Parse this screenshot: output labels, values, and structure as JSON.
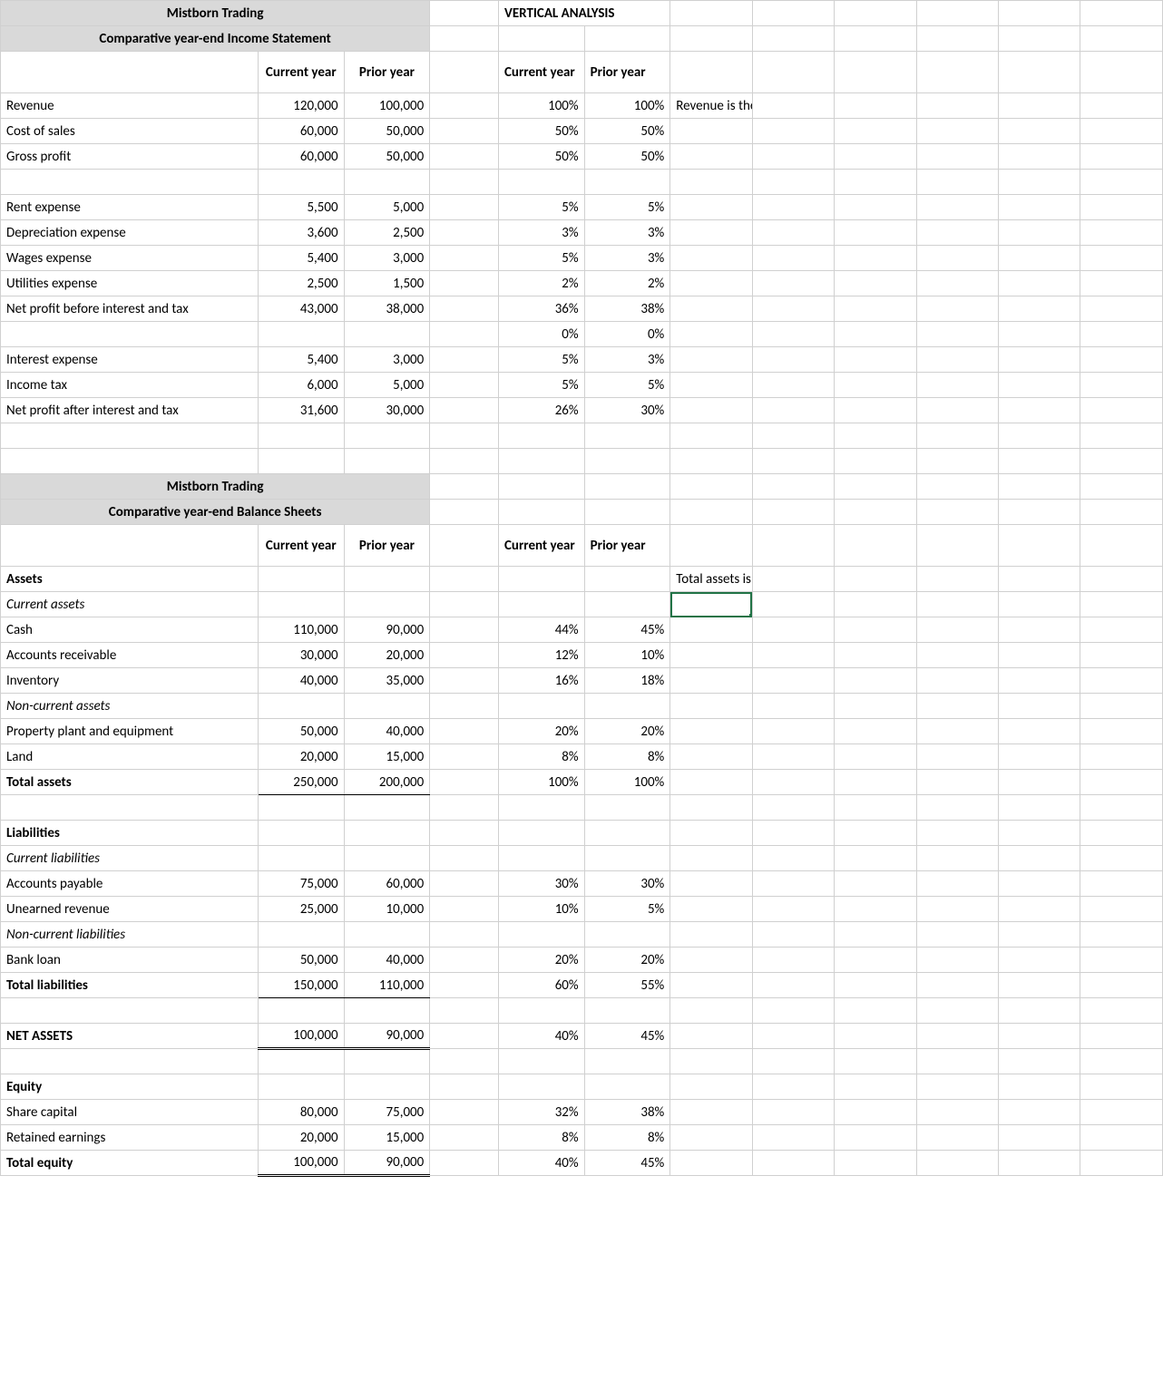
{
  "colors": {
    "header_bg": "#d9d9d9",
    "grid": "#d0d0d0",
    "selection": "#217346",
    "text": "#000000",
    "background": "#ffffff"
  },
  "vertical_analysis_label": "VERTICAL ANALYSIS",
  "col_headers": {
    "current_year": "Current year",
    "prior_year": "Prior year"
  },
  "income": {
    "title1": "Mistborn Trading",
    "title2": "Comparative year-end Income Statement",
    "note": "Revenue is the base for the P&L",
    "rows": [
      {
        "label": "Revenue",
        "cy": "120,000",
        "py": "100,000",
        "cyp": "100%",
        "pyp": "100%",
        "note": true
      },
      {
        "label": "Cost of sales",
        "cy": "60,000",
        "py": "50,000",
        "cyp": "50%",
        "pyp": "50%"
      },
      {
        "label": "Gross profit",
        "cy": "60,000",
        "py": "50,000",
        "cyp": "50%",
        "pyp": "50%"
      },
      {
        "blank": true
      },
      {
        "label": "Rent expense",
        "cy": "5,500",
        "py": "5,000",
        "cyp": "5%",
        "pyp": "5%"
      },
      {
        "label": "Depreciation expense",
        "cy": "3,600",
        "py": "2,500",
        "cyp": "3%",
        "pyp": "3%"
      },
      {
        "label": "Wages expense",
        "cy": "5,400",
        "py": "3,000",
        "cyp": "5%",
        "pyp": "3%"
      },
      {
        "label": "Utilities expense",
        "cy": "2,500",
        "py": "1,500",
        "cyp": "2%",
        "pyp": "2%"
      },
      {
        "label": "Net profit before interest and tax",
        "cy": "43,000",
        "py": "38,000",
        "cyp": "36%",
        "pyp": "38%"
      },
      {
        "label": "",
        "cy": "",
        "py": "",
        "cyp": "0%",
        "pyp": "0%"
      },
      {
        "label": "Interest expense",
        "cy": "5,400",
        "py": "3,000",
        "cyp": "5%",
        "pyp": "3%"
      },
      {
        "label": "Income tax",
        "cy": "6,000",
        "py": "5,000",
        "cyp": "5%",
        "pyp": "5%"
      },
      {
        "label": "Net profit after interest and tax",
        "cy": "31,600",
        "py": "30,000",
        "cyp": "26%",
        "pyp": "30%"
      }
    ]
  },
  "balance": {
    "title1": "Mistborn Trading",
    "title2": "Comparative year-end Balance Sheets",
    "note": "Total assets is the base for the Balance Sheet",
    "rows": [
      {
        "label": "Assets",
        "bold": true,
        "note": true
      },
      {
        "label": "Current assets",
        "italic": true,
        "selected_after": true
      },
      {
        "label": "Cash",
        "cy": "110,000",
        "py": "90,000",
        "cyp": "44%",
        "pyp": "45%"
      },
      {
        "label": "Accounts receivable",
        "cy": "30,000",
        "py": "20,000",
        "cyp": "12%",
        "pyp": "10%"
      },
      {
        "label": "Inventory",
        "cy": "40,000",
        "py": "35,000",
        "cyp": "16%",
        "pyp": "18%"
      },
      {
        "label": "Non-current assets",
        "italic": true
      },
      {
        "label": "Property plant and equipment",
        "cy": "50,000",
        "py": "40,000",
        "cyp": "20%",
        "pyp": "20%"
      },
      {
        "label": "Land",
        "cy": "20,000",
        "py": "15,000",
        "cyp": "8%",
        "pyp": "8%"
      },
      {
        "label": "Total assets",
        "bold": true,
        "cy": "250,000",
        "py": "200,000",
        "cyp": "100%",
        "pyp": "100%",
        "rule": "single"
      },
      {
        "blank": true
      },
      {
        "label": "Liabilities",
        "bold": true
      },
      {
        "label": "Current liabilities",
        "italic": true
      },
      {
        "label": "Accounts payable",
        "cy": "75,000",
        "py": "60,000",
        "cyp": "30%",
        "pyp": "30%"
      },
      {
        "label": "Unearned revenue",
        "cy": "25,000",
        "py": "10,000",
        "cyp": "10%",
        "pyp": "5%"
      },
      {
        "label": "Non-current liabilities",
        "italic": true
      },
      {
        "label": "Bank loan",
        "cy": "50,000",
        "py": "40,000",
        "cyp": "20%",
        "pyp": "20%"
      },
      {
        "label": "Total liabilities",
        "bold": true,
        "cy": "150,000",
        "py": "110,000",
        "cyp": "60%",
        "pyp": "55%",
        "rule": "single"
      },
      {
        "blank": true
      },
      {
        "label": "NET ASSETS",
        "bold": true,
        "cy": "100,000",
        "py": "90,000",
        "cyp": "40%",
        "pyp": "45%",
        "rule": "double"
      },
      {
        "blank": true
      },
      {
        "label": "Equity",
        "bold": true
      },
      {
        "label": "Share capital",
        "cy": "80,000",
        "py": "75,000",
        "cyp": "32%",
        "pyp": "38%"
      },
      {
        "label": "Retained earnings",
        "cy": "20,000",
        "py": "15,000",
        "cyp": "8%",
        "pyp": "8%"
      },
      {
        "label": "Total equity",
        "bold": true,
        "cy": "100,000",
        "py": "90,000",
        "cyp": "40%",
        "pyp": "45%",
        "rule": "double"
      }
    ]
  }
}
